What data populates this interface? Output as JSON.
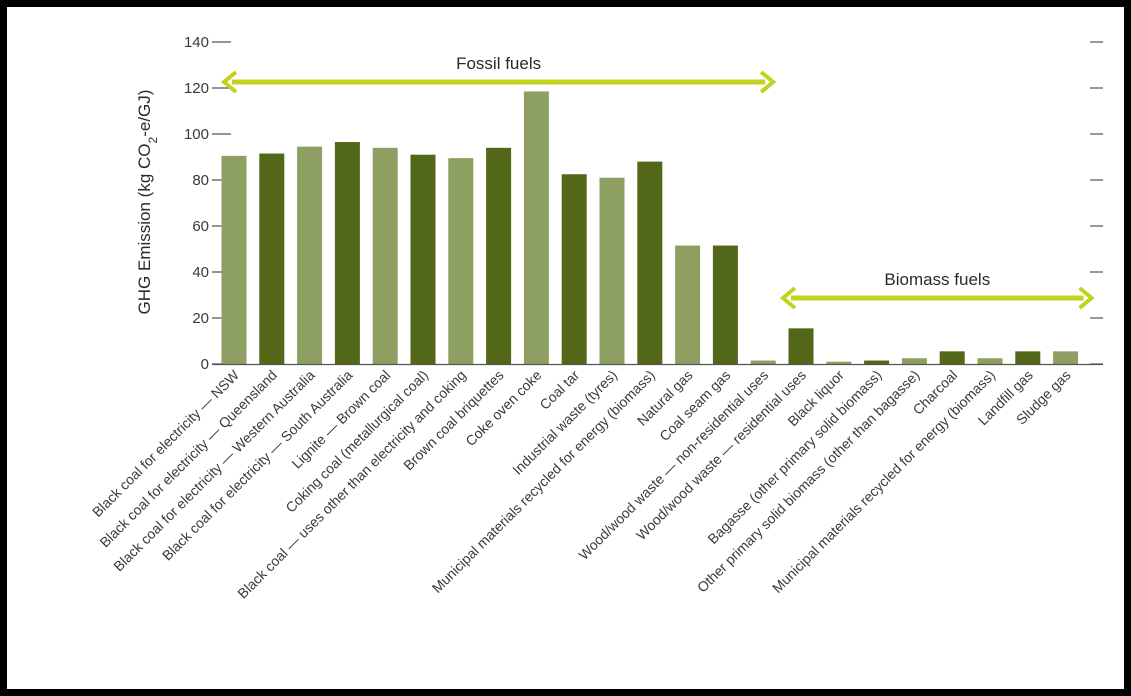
{
  "chart_data": {
    "type": "bar",
    "ylabel_main": "GHG Emission (kg CO",
    "ylabel_sub": "2",
    "ylabel_tail": "-e/GJ)",
    "ylim": [
      0,
      140
    ],
    "yticks": [
      "0",
      "20",
      "40",
      "60",
      "80",
      "100",
      "120",
      "140"
    ],
    "grid": false,
    "colors": {
      "light": "#8d9f61",
      "dark": "#526717",
      "arrow": "#c3d31c",
      "axis": "#555555"
    },
    "groups": [
      {
        "label": "Fossil fuels",
        "from": 0,
        "to": 14
      },
      {
        "label": "Biomass fuels",
        "from": 15,
        "to": 22
      }
    ],
    "categories": [
      "Black coal for electricity — NSW",
      "Black coal for electricity — Queensland",
      "Black coal for electricity — Western Australia",
      "Black coal for electricity — South Australia",
      "Lignite — Brown coal",
      "Coking coal (metallurgical coal)",
      "Black coal — uses other than electricity and coking",
      "Brown coal briquettes",
      "Coke oven coke",
      "Coal tar",
      "Industrial waste (tyres)",
      "Municipal materials recycled for energy (biomass)",
      "Natural gas",
      "Coal seam gas",
      "Wood/wood waste — non-residential uses",
      "Wood/wood waste — residential uses",
      "Black liquor",
      "Bagasse (other primary solid biomass)",
      "Other primary solid biomass (other than bagasse)",
      "Charcoal",
      "Municipal materials recycled for energy (biomass)",
      "Landfill gas",
      "Sludge gas"
    ],
    "values": [
      90.5,
      91.5,
      94.5,
      96.5,
      94,
      91,
      89.5,
      94,
      118.5,
      82.5,
      81,
      88,
      51.5,
      51.5,
      1.5,
      15.5,
      1,
      1.5,
      2.5,
      5.5,
      2.5,
      5.5,
      5.5
    ],
    "shade": [
      "light",
      "dark",
      "light",
      "dark",
      "light",
      "dark",
      "light",
      "dark",
      "light",
      "dark",
      "light",
      "dark",
      "light",
      "dark",
      "light",
      "dark",
      "light",
      "dark",
      "light",
      "dark",
      "light",
      "dark",
      "light"
    ]
  }
}
